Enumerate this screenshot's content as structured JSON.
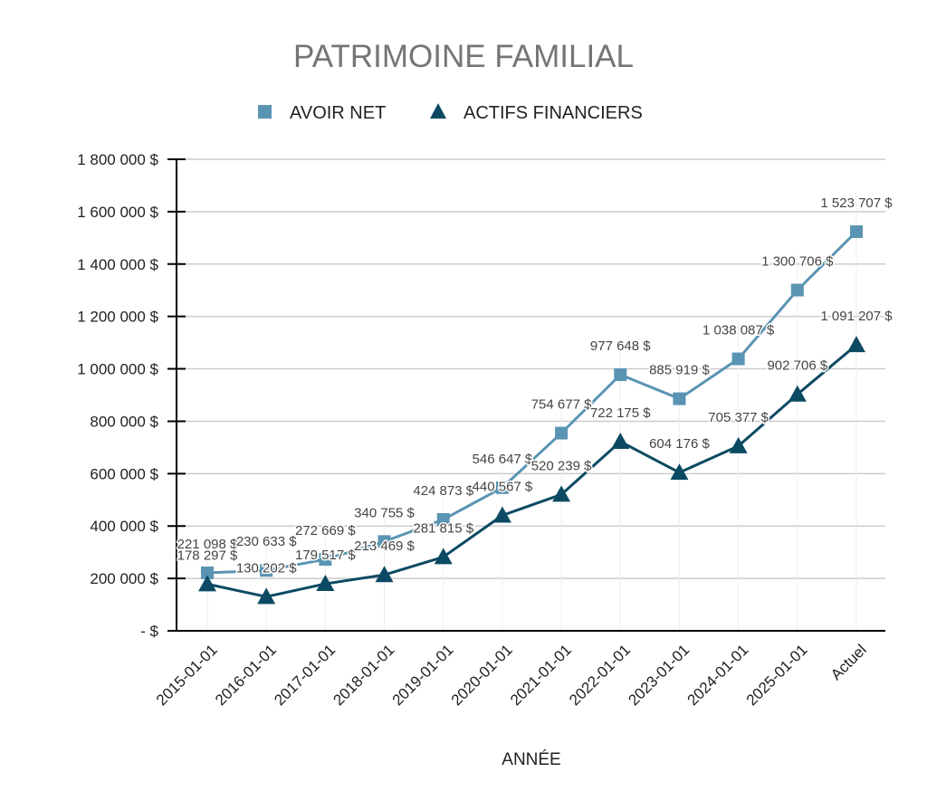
{
  "chart_data": {
    "type": "line",
    "title": "PATRIMOINE FAMILIAL",
    "xlabel": "ANNÉE",
    "ylabel": "",
    "ylim": [
      0,
      1800000
    ],
    "yticks": [
      0,
      200000,
      400000,
      600000,
      800000,
      1000000,
      1200000,
      1400000,
      1600000,
      1800000
    ],
    "ytick_labels": [
      "-  $",
      "200 000 $",
      "400 000 $",
      "600 000 $",
      "800 000 $",
      "1 000 000 $",
      "1 200 000 $",
      "1 400 000 $",
      "1 600 000 $",
      "1 800 000 $"
    ],
    "categories": [
      "2015-01-01",
      "2016-01-01",
      "2017-01-01",
      "2018-01-01",
      "2019-01-01",
      "2020-01-01",
      "2021-01-01",
      "2022-01-01",
      "2023-01-01",
      "2024-01-01",
      "2025-01-01",
      "Actuel"
    ],
    "legend_position": "top",
    "grid": true,
    "series": [
      {
        "name": "AVOIR NET",
        "color": "#5a94b3",
        "marker": "square",
        "values": [
          221098,
          230633,
          272669,
          340755,
          424873,
          546647,
          754677,
          977648,
          885919,
          1038087,
          1300706,
          1523707
        ],
        "labels": [
          "221 098 $",
          "230 633 $",
          "272 669 $",
          "340 755 $",
          "424 873 $",
          "546 647 $",
          "754 677 $",
          "977 648 $",
          "885 919 $",
          "1 038 087 $",
          "1 300 706 $",
          "1 523 707 $"
        ]
      },
      {
        "name": "ACTIFS FINANCIERS",
        "color": "#0c4a63",
        "marker": "triangle",
        "values": [
          178297,
          130202,
          179517,
          213469,
          281815,
          440567,
          520239,
          722175,
          604176,
          705377,
          902706,
          1091207
        ],
        "labels": [
          "178 297 $",
          "130 202 $",
          "179 517 $",
          "213 469 $",
          "281 815 $",
          "440 567 $",
          "520 239 $",
          "722 175 $",
          "604 176 $",
          "705 377 $",
          "902 706 $",
          "1 091 207 $"
        ]
      }
    ]
  }
}
